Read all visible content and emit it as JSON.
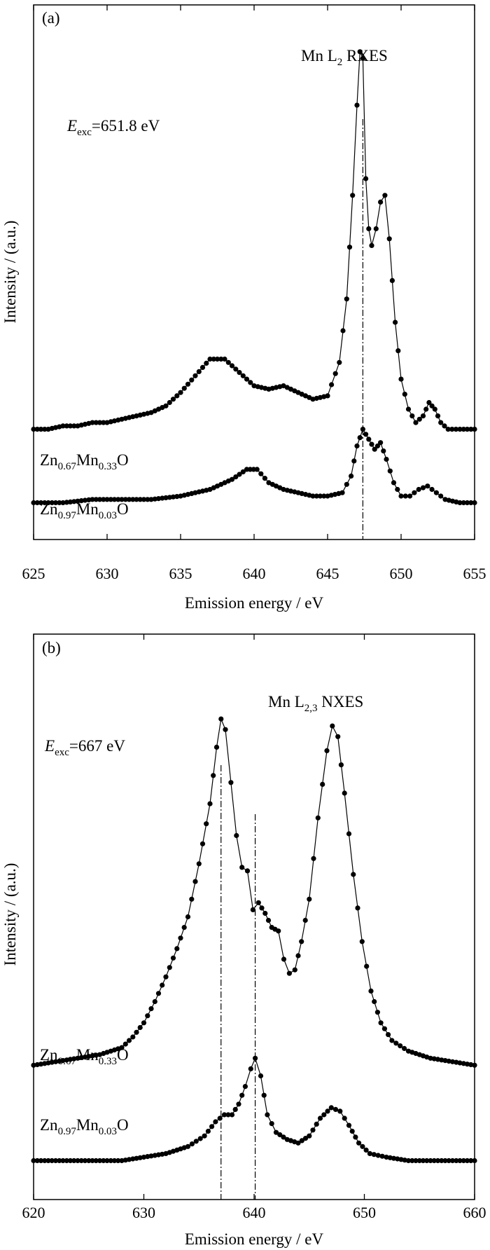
{
  "chart_data": [
    {
      "type": "line",
      "panel_label": "(a)",
      "title": "Mn L2 RXES",
      "title_parts": {
        "pre": "Mn L",
        "sub": "2",
        "post": " RXES"
      },
      "excitation": {
        "symbol": "E",
        "sub": "exc",
        "value": "=651.8 eV"
      },
      "xlabel": "Emission energy / eV",
      "ylabel": "Intensity / (a.u.)",
      "xlim": [
        625,
        655
      ],
      "ylim": [
        -0.1,
        1.5
      ],
      "xticks": [
        625,
        630,
        635,
        640,
        645,
        650,
        655
      ],
      "grid": false,
      "markers": "filled circles",
      "vertical_lines": [
        647.4
      ],
      "series": [
        {
          "name": "Zn0.67Mn0.33O",
          "label_parts": [
            {
              "t": "Zn"
            },
            {
              "s": "0.67"
            },
            {
              "t": "Mn"
            },
            {
              "s": "0.33"
            },
            {
              "t": "O"
            }
          ],
          "x": [
            625,
            626,
            627,
            628,
            629,
            630,
            631,
            632,
            633,
            634,
            635,
            636,
            637,
            638,
            639,
            640,
            641,
            642,
            643,
            644,
            645,
            645.8,
            646.3,
            646.7,
            647.0,
            647.2,
            647.4,
            647.6,
            647.8,
            648.0,
            648.3,
            648.6,
            648.9,
            649.2,
            649.6,
            650.0,
            650.5,
            651.0,
            651.5,
            651.9,
            652.3,
            652.7,
            653.2,
            654,
            655
          ],
          "values": [
            0.23,
            0.23,
            0.24,
            0.24,
            0.25,
            0.25,
            0.26,
            0.27,
            0.28,
            0.3,
            0.34,
            0.39,
            0.44,
            0.44,
            0.4,
            0.36,
            0.35,
            0.36,
            0.34,
            0.32,
            0.33,
            0.43,
            0.62,
            0.93,
            1.2,
            1.36,
            1.34,
            0.98,
            0.83,
            0.78,
            0.83,
            0.91,
            0.93,
            0.8,
            0.55,
            0.38,
            0.29,
            0.25,
            0.27,
            0.31,
            0.29,
            0.25,
            0.23,
            0.23,
            0.23
          ]
        },
        {
          "name": "Zn0.97Mn0.03O",
          "label_parts": [
            {
              "t": "Zn"
            },
            {
              "s": "0.97"
            },
            {
              "t": "Mn"
            },
            {
              "s": "0.03"
            },
            {
              "t": "O"
            }
          ],
          "x": [
            625,
            627,
            629,
            631,
            633,
            635,
            637,
            638.5,
            639.5,
            640.2,
            641,
            642,
            643,
            644,
            645,
            646,
            646.6,
            647.0,
            647.4,
            647.8,
            648.2,
            648.6,
            649.0,
            649.5,
            650.0,
            650.6,
            651.2,
            651.8,
            652.4,
            653,
            654,
            655
          ],
          "values": [
            0.01,
            0.01,
            0.02,
            0.02,
            0.02,
            0.03,
            0.05,
            0.08,
            0.11,
            0.11,
            0.07,
            0.05,
            0.04,
            0.03,
            0.03,
            0.04,
            0.09,
            0.18,
            0.23,
            0.2,
            0.17,
            0.19,
            0.14,
            0.07,
            0.03,
            0.03,
            0.05,
            0.06,
            0.04,
            0.02,
            0.01,
            0.01
          ]
        }
      ]
    },
    {
      "type": "line",
      "panel_label": "(b)",
      "title": "Mn L2,3 NXES",
      "title_parts": {
        "pre": "Mn L",
        "sub": "2,3",
        "post": " NXES"
      },
      "excitation": {
        "symbol": "E",
        "sub": "exc",
        "value": "=667 eV"
      },
      "xlabel": "Emission energy / eV",
      "ylabel": "Intensity / (a.u.)",
      "xlim": [
        620,
        660
      ],
      "ylim": [
        -0.1,
        1.5
      ],
      "xticks": [
        620,
        630,
        640,
        650,
        660
      ],
      "grid": false,
      "markers": "filled circles",
      "vertical_lines": [
        637.0,
        640.1
      ],
      "series": [
        {
          "name": "Zn0.67Mn0.33O",
          "label_parts": [
            {
              "t": "Zn"
            },
            {
              "s": "0.67"
            },
            {
              "t": "Mn"
            },
            {
              "s": "0.33"
            },
            {
              "t": "O"
            }
          ],
          "x": [
            620,
            622,
            624,
            626,
            628,
            629,
            630,
            631,
            632,
            633,
            634,
            635,
            636,
            636.6,
            637.0,
            637.4,
            637.9,
            638.4,
            638.9,
            639.4,
            639.9,
            640.4,
            641.0,
            641.6,
            642.2,
            642.7,
            643.2,
            643.7,
            644.3,
            645.0,
            645.8,
            646.6,
            647.1,
            647.6,
            648.2,
            649.0,
            649.8,
            650.6,
            651.5,
            652.5,
            654,
            656,
            658,
            660
          ],
          "values": [
            0.28,
            0.29,
            0.3,
            0.31,
            0.33,
            0.36,
            0.4,
            0.46,
            0.53,
            0.61,
            0.7,
            0.85,
            1.02,
            1.18,
            1.26,
            1.23,
            1.08,
            0.93,
            0.84,
            0.83,
            0.72,
            0.74,
            0.71,
            0.67,
            0.66,
            0.58,
            0.54,
            0.55,
            0.63,
            0.75,
            0.98,
            1.17,
            1.24,
            1.21,
            1.05,
            0.82,
            0.63,
            0.49,
            0.4,
            0.35,
            0.32,
            0.3,
            0.29,
            0.28
          ]
        },
        {
          "name": "Zn0.97Mn0.03O",
          "label_parts": [
            {
              "t": "Zn"
            },
            {
              "s": "0.97"
            },
            {
              "t": "Mn"
            },
            {
              "s": "0.03"
            },
            {
              "t": "O"
            }
          ],
          "x": [
            620,
            622,
            624,
            626,
            628,
            630,
            632,
            634,
            635.5,
            636.5,
            637.3,
            638,
            638.6,
            639.2,
            639.7,
            640.1,
            640.6,
            641.2,
            642,
            643,
            644,
            645,
            646,
            647,
            647.8,
            648.6,
            649.5,
            650.5,
            652,
            654,
            656,
            658,
            660
          ],
          "values": [
            0.01,
            0.01,
            0.01,
            0.01,
            0.01,
            0.02,
            0.03,
            0.05,
            0.08,
            0.12,
            0.14,
            0.14,
            0.17,
            0.22,
            0.27,
            0.3,
            0.25,
            0.14,
            0.09,
            0.07,
            0.06,
            0.08,
            0.13,
            0.16,
            0.15,
            0.11,
            0.06,
            0.03,
            0.02,
            0.01,
            0.01,
            0.01,
            0.01
          ]
        }
      ]
    }
  ]
}
